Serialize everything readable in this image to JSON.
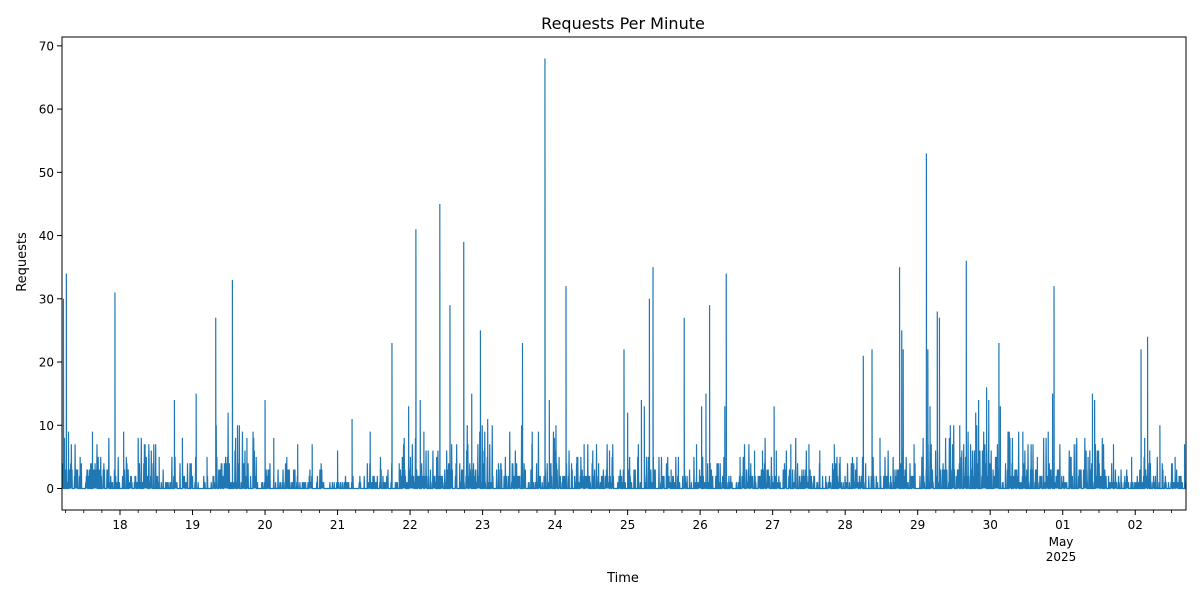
{
  "chart_data": {
    "type": "line",
    "title": "Requests Per Minute",
    "xlabel": "Time",
    "ylabel": "Requests",
    "ylim": [
      -3.4,
      71.4
    ],
    "y_ticks": [
      0,
      10,
      20,
      30,
      40,
      50,
      60,
      70
    ],
    "x_range_days": [
      17.2,
      32.7
    ],
    "x_ticks": [
      {
        "label": "18",
        "day": 18
      },
      {
        "label": "19",
        "day": 19
      },
      {
        "label": "20",
        "day": 20
      },
      {
        "label": "21",
        "day": 21
      },
      {
        "label": "22",
        "day": 22
      },
      {
        "label": "23",
        "day": 23
      },
      {
        "label": "24",
        "day": 24
      },
      {
        "label": "25",
        "day": 25
      },
      {
        "label": "26",
        "day": 26
      },
      {
        "label": "27",
        "day": 27
      },
      {
        "label": "28",
        "day": 28
      },
      {
        "label": "29",
        "day": 29
      },
      {
        "label": "30",
        "day": 30
      },
      {
        "label": "01",
        "day": 31
      },
      {
        "label": "02",
        "day": 32
      }
    ],
    "x_month_label": "May",
    "x_year_label": "2025",
    "line_color": "#1f77b4",
    "grid": false,
    "series": [
      {
        "peaks": [
          [
            17.22,
            30
          ],
          [
            17.26,
            34
          ],
          [
            17.29,
            9
          ],
          [
            17.45,
            5
          ],
          [
            17.62,
            9
          ],
          [
            17.93,
            31
          ],
          [
            18.05,
            9
          ],
          [
            18.25,
            7
          ],
          [
            18.4,
            6
          ],
          [
            18.54,
            5
          ],
          [
            18.75,
            14
          ],
          [
            18.86,
            8
          ],
          [
            19.05,
            15
          ],
          [
            19.2,
            5
          ],
          [
            19.32,
            27
          ],
          [
            19.55,
            33
          ],
          [
            19.62,
            10
          ],
          [
            19.75,
            8
          ],
          [
            20.0,
            14
          ],
          [
            20.12,
            8
          ],
          [
            20.3,
            5
          ],
          [
            20.45,
            7
          ],
          [
            20.65,
            7
          ],
          [
            21.0,
            6
          ],
          [
            21.2,
            11
          ],
          [
            21.45,
            9
          ],
          [
            21.75,
            23
          ],
          [
            21.85,
            4
          ],
          [
            21.98,
            13
          ],
          [
            22.08,
            41
          ],
          [
            22.14,
            14
          ],
          [
            22.19,
            9
          ],
          [
            22.25,
            6
          ],
          [
            22.41,
            45
          ],
          [
            22.55,
            29
          ],
          [
            22.74,
            39
          ],
          [
            22.85,
            15
          ],
          [
            22.97,
            25
          ],
          [
            23.02,
            6
          ],
          [
            23.07,
            11
          ],
          [
            23.25,
            4
          ],
          [
            23.55,
            23
          ],
          [
            23.68,
            7
          ],
          [
            23.86,
            68
          ],
          [
            23.92,
            14
          ],
          [
            23.99,
            8
          ],
          [
            24.15,
            32
          ],
          [
            24.3,
            5
          ],
          [
            24.4,
            7
          ],
          [
            24.6,
            4
          ],
          [
            24.75,
            6
          ],
          [
            24.95,
            22
          ],
          [
            25.0,
            12
          ],
          [
            25.19,
            14
          ],
          [
            25.23,
            13
          ],
          [
            25.3,
            30
          ],
          [
            25.35,
            35
          ],
          [
            25.6,
            3
          ],
          [
            25.7,
            5
          ],
          [
            25.78,
            27
          ],
          [
            25.95,
            7
          ],
          [
            26.02,
            13
          ],
          [
            26.08,
            15
          ],
          [
            26.13,
            29
          ],
          [
            26.25,
            4
          ],
          [
            26.34,
            13
          ],
          [
            26.36,
            34
          ],
          [
            26.55,
            5
          ],
          [
            26.75,
            6
          ],
          [
            26.86,
            6
          ],
          [
            27.02,
            13
          ],
          [
            27.05,
            6
          ],
          [
            27.25,
            7
          ],
          [
            27.5,
            7
          ],
          [
            27.65,
            6
          ],
          [
            27.85,
            7
          ],
          [
            28.1,
            5
          ],
          [
            28.25,
            21
          ],
          [
            28.37,
            22
          ],
          [
            28.48,
            8
          ],
          [
            28.75,
            35
          ],
          [
            28.78,
            25
          ],
          [
            28.8,
            22
          ],
          [
            28.95,
            7
          ],
          [
            29.12,
            53
          ],
          [
            29.14,
            22
          ],
          [
            29.17,
            13
          ],
          [
            29.27,
            28
          ],
          [
            29.3,
            27
          ],
          [
            29.45,
            10
          ],
          [
            29.58,
            10
          ],
          [
            29.67,
            36
          ],
          [
            29.8,
            12
          ],
          [
            29.84,
            14
          ],
          [
            29.95,
            16
          ],
          [
            29.98,
            14
          ],
          [
            30.12,
            23
          ],
          [
            30.14,
            13
          ],
          [
            30.3,
            4
          ],
          [
            30.45,
            9
          ],
          [
            30.65,
            5
          ],
          [
            30.8,
            9
          ],
          [
            30.86,
            15
          ],
          [
            30.88,
            32
          ],
          [
            31.1,
            5
          ],
          [
            31.35,
            5
          ],
          [
            31.41,
            15
          ],
          [
            31.44,
            14
          ],
          [
            31.7,
            7
          ],
          [
            31.95,
            5
          ],
          [
            32.08,
            22
          ],
          [
            32.13,
            8
          ],
          [
            32.17,
            24
          ],
          [
            32.2,
            6
          ],
          [
            32.34,
            10
          ],
          [
            32.55,
            5
          ],
          [
            32.68,
            7
          ]
        ],
        "baseline_segments": [
          [
            17.2,
            17.92,
            4
          ],
          [
            17.92,
            18.6,
            3
          ],
          [
            18.6,
            19.3,
            2
          ],
          [
            19.3,
            19.9,
            5
          ],
          [
            19.9,
            21.1,
            1
          ],
          [
            21.1,
            21.9,
            2
          ],
          [
            21.9,
            22.5,
            3
          ],
          [
            22.5,
            23.3,
            4
          ],
          [
            23.3,
            24.2,
            4
          ],
          [
            24.2,
            24.7,
            3
          ],
          [
            24.7,
            25.4,
            3
          ],
          [
            25.4,
            26.6,
            2
          ],
          [
            26.6,
            27.7,
            3
          ],
          [
            27.7,
            28.7,
            2
          ],
          [
            28.7,
            29.4,
            3
          ],
          [
            29.4,
            30.4,
            4
          ],
          [
            30.4,
            31.6,
            3
          ],
          [
            31.6,
            32.7,
            2
          ]
        ]
      }
    ]
  }
}
